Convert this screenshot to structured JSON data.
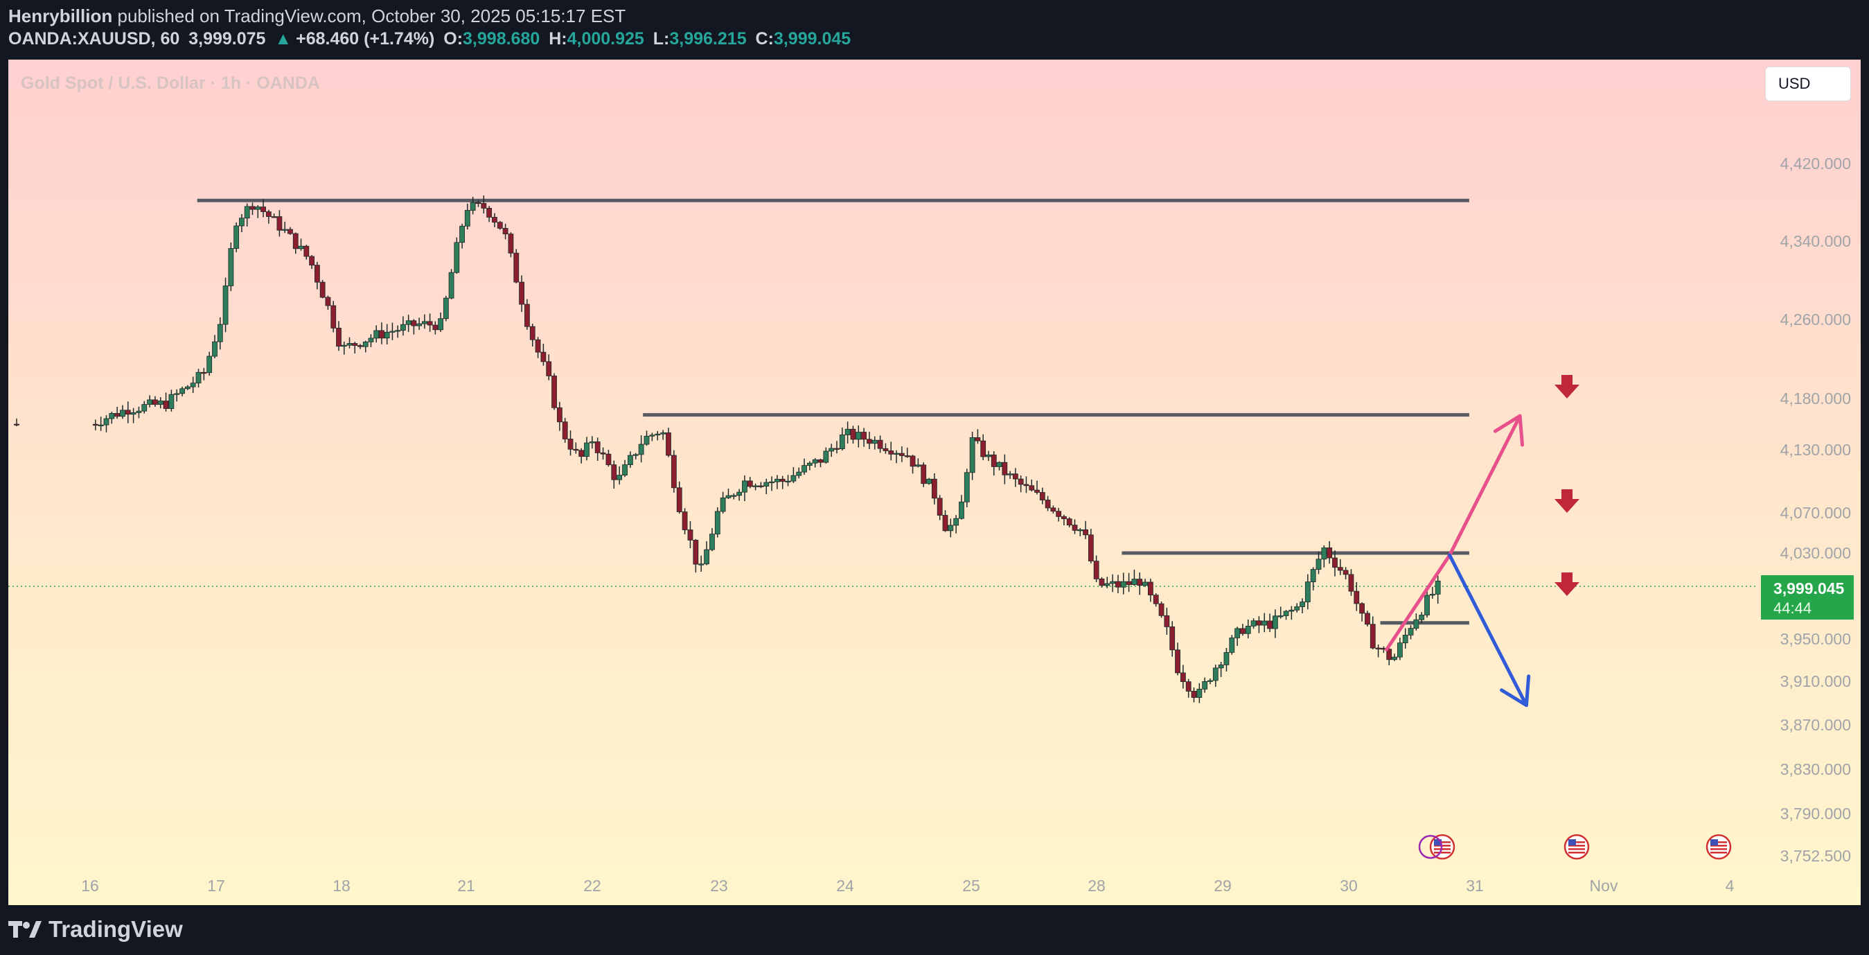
{
  "header": {
    "author": "Henrybillion",
    "published_text": "published on TradingView.com, October 30, 2025 05:15:17 EST",
    "symbol": "OANDA:XAUUSD, 60",
    "price": "3,999.075",
    "change_arrow": "▲",
    "change": "+68.460 (+1.74%)",
    "o_label": "O:",
    "o_value": "3,998.680",
    "h_label": "H:",
    "h_value": "4,000.925",
    "l_label": "L:",
    "l_value": "3,996.215",
    "c_label": "C:",
    "c_value": "3,999.045"
  },
  "chart_data": {
    "type": "candlestick",
    "title": "Gold Spot / U.S. Dollar · 1h · OANDA",
    "currency_button": "USD",
    "y_ticks": [
      "4,420.000",
      "4,340.000",
      "4,260.000",
      "4,180.000",
      "4,130.000",
      "4,070.000",
      "4,030.000",
      "3,950.000",
      "3,910.000",
      "3,870.000",
      "3,830.000",
      "3,790.000",
      "3,752.500"
    ],
    "y_tick_values": [
      4420,
      4340,
      4260,
      4180,
      4130,
      4070,
      4030,
      3950,
      3910,
      3870,
      3830,
      3790,
      3752.5
    ],
    "x_ticks": [
      "16",
      "17",
      "18",
      "21",
      "22",
      "23",
      "24",
      "25",
      "28",
      "29",
      "30",
      "31",
      "Nov",
      "4"
    ],
    "current_price_label": "3,999.045",
    "countdown_label": "44:44",
    "current_price": 3999.045,
    "horizontal_levels": [
      {
        "price": 4382,
        "from_tick": 16.85,
        "to_tick": 30.95
      },
      {
        "price": 4164,
        "from_tick": 22.4,
        "to_tick": 30.95
      },
      {
        "price": 4030,
        "from_tick": 28.2,
        "to_tick": 30.95
      },
      {
        "price": 3965,
        "from_tick": 30.25,
        "to_tick": 30.95
      }
    ],
    "scenario_up": {
      "color": "#e8508c",
      "points": [
        [
          30.3,
          3940
        ],
        [
          30.8,
          4028
        ],
        [
          31.35,
          4163
        ]
      ]
    },
    "scenario_down": {
      "color": "#2f5bd8",
      "points": [
        [
          30.8,
          4028
        ],
        [
          31.4,
          3888
        ]
      ]
    },
    "colors": {
      "up": "#2e7d5b",
      "down": "#8b1e2f",
      "level": "#555a63",
      "marker": "#c0283a",
      "price_tag": "#26a64a"
    },
    "brand": "TradingView"
  }
}
